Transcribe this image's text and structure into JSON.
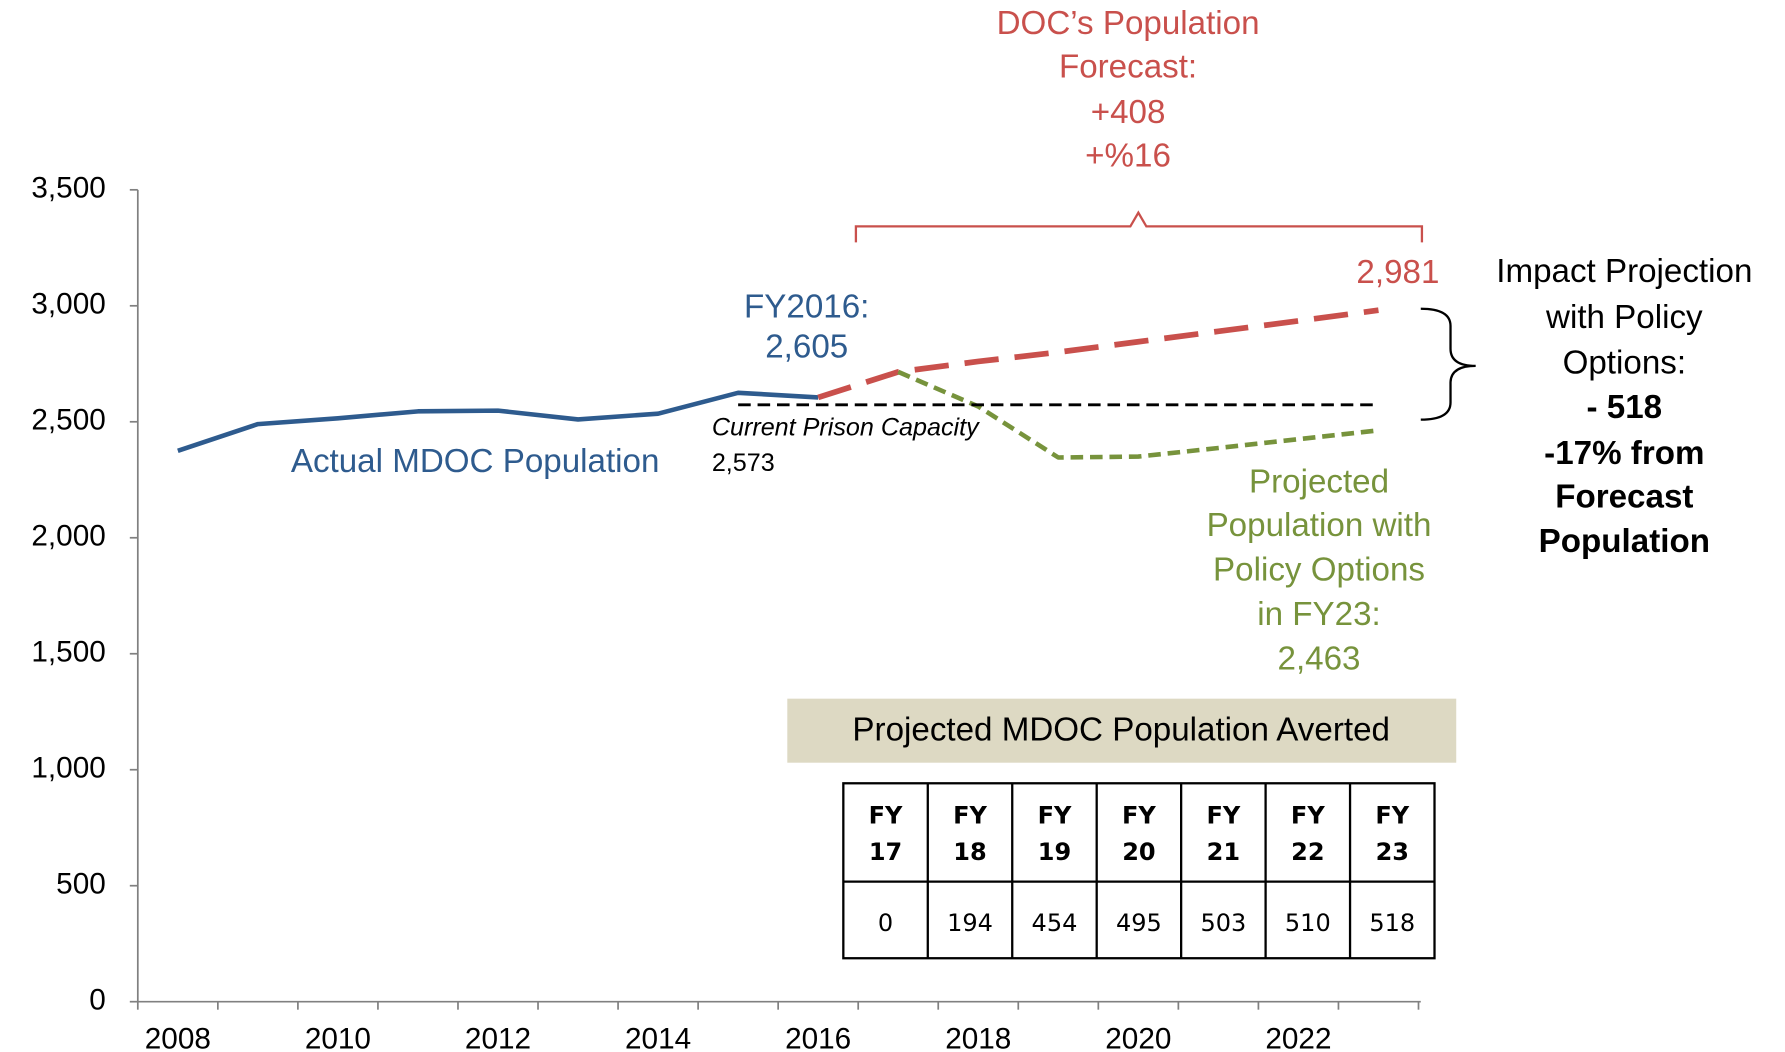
{
  "chart_data": {
    "type": "line",
    "categories": [
      "2008",
      null,
      "2010",
      null,
      "2012",
      null,
      "2014",
      null,
      "2016",
      null,
      "2018",
      null,
      "2020",
      null,
      "2022",
      null
    ],
    "series": [
      {
        "color": "#2e5b8e",
        "style": "solid",
        "values": [
          2375,
          2490,
          2515,
          2545,
          2548,
          2510,
          2535,
          2625,
          2605,
          null,
          null,
          null,
          null,
          null,
          null,
          null
        ]
      },
      {
        "color": "#c9504c",
        "style": "long-dash",
        "values": [
          null,
          null,
          null,
          null,
          null,
          null,
          null,
          null,
          2605,
          2715,
          2760,
          2800,
          2845,
          2890,
          2935,
          2981
        ]
      },
      {
        "color": "#77933c",
        "style": "dash",
        "values": [
          null,
          null,
          null,
          null,
          null,
          null,
          null,
          null,
          null,
          2715,
          2566,
          2346,
          2350,
          2387,
          2425,
          2463
        ]
      },
      {
        "color": "#000000",
        "style": "dash",
        "values": [
          null,
          null,
          null,
          null,
          null,
          null,
          null,
          2573,
          2573,
          2573,
          2573,
          2573,
          2573,
          2573,
          2573,
          2573
        ]
      }
    ],
    "ylim": [
      0,
      3500
    ],
    "yticks": [
      0,
      500,
      {
        "value": 1000,
        "label": "1,000"
      },
      {
        "value": 1500,
        "label": "1,500"
      },
      {
        "value": 2000,
        "label": "2,000"
      },
      {
        "value": 2500,
        "label": "2,500"
      },
      {
        "value": 3000,
        "label": "3,000"
      },
      {
        "value": 3500,
        "label": "3,500"
      }
    ],
    "annotations": [
      {
        "color": "#2e5b8e",
        "lines": [
          "Actual MDOC Population"
        ]
      },
      {
        "color": "#2e5b8e",
        "lines": [
          "FY2016:",
          "2,605"
        ]
      },
      {
        "color": "#000000",
        "lines": [
          "Current Prison Capacity"
        ],
        "italic": true
      },
      {
        "color": "#000000",
        "lines": [
          "2,573"
        ]
      },
      {
        "color": "#c9504c",
        "lines": [
          "DOC’s Population",
          "Forecast:",
          "+408",
          "+%16"
        ]
      },
      {
        "color": "#c9504c",
        "lines": [
          "2,981"
        ]
      },
      {
        "color": "#77933c",
        "lines": [
          "Projected",
          "Population with",
          "Policy Options",
          "in FY23:",
          "2,463"
        ]
      },
      {
        "color": "#000000",
        "lines": [
          "Impact Projection",
          "with Policy",
          "Options:"
        ]
      },
      {
        "color": "#000000",
        "lines": [
          "- 518",
          "-17% from",
          "Forecast",
          "Population"
        ],
        "bold": true
      }
    ],
    "table": {
      "title": "Projected MDOC Population Averted",
      "headers": [
        [
          "FY",
          "17"
        ],
        [
          "FY",
          "18"
        ],
        [
          "FY",
          "19"
        ],
        [
          "FY",
          "20"
        ],
        [
          "FY",
          "21"
        ],
        [
          "FY",
          "22"
        ],
        [
          "FY",
          "23"
        ]
      ],
      "values": [
        0,
        194,
        454,
        495,
        503,
        510,
        518
      ]
    }
  }
}
